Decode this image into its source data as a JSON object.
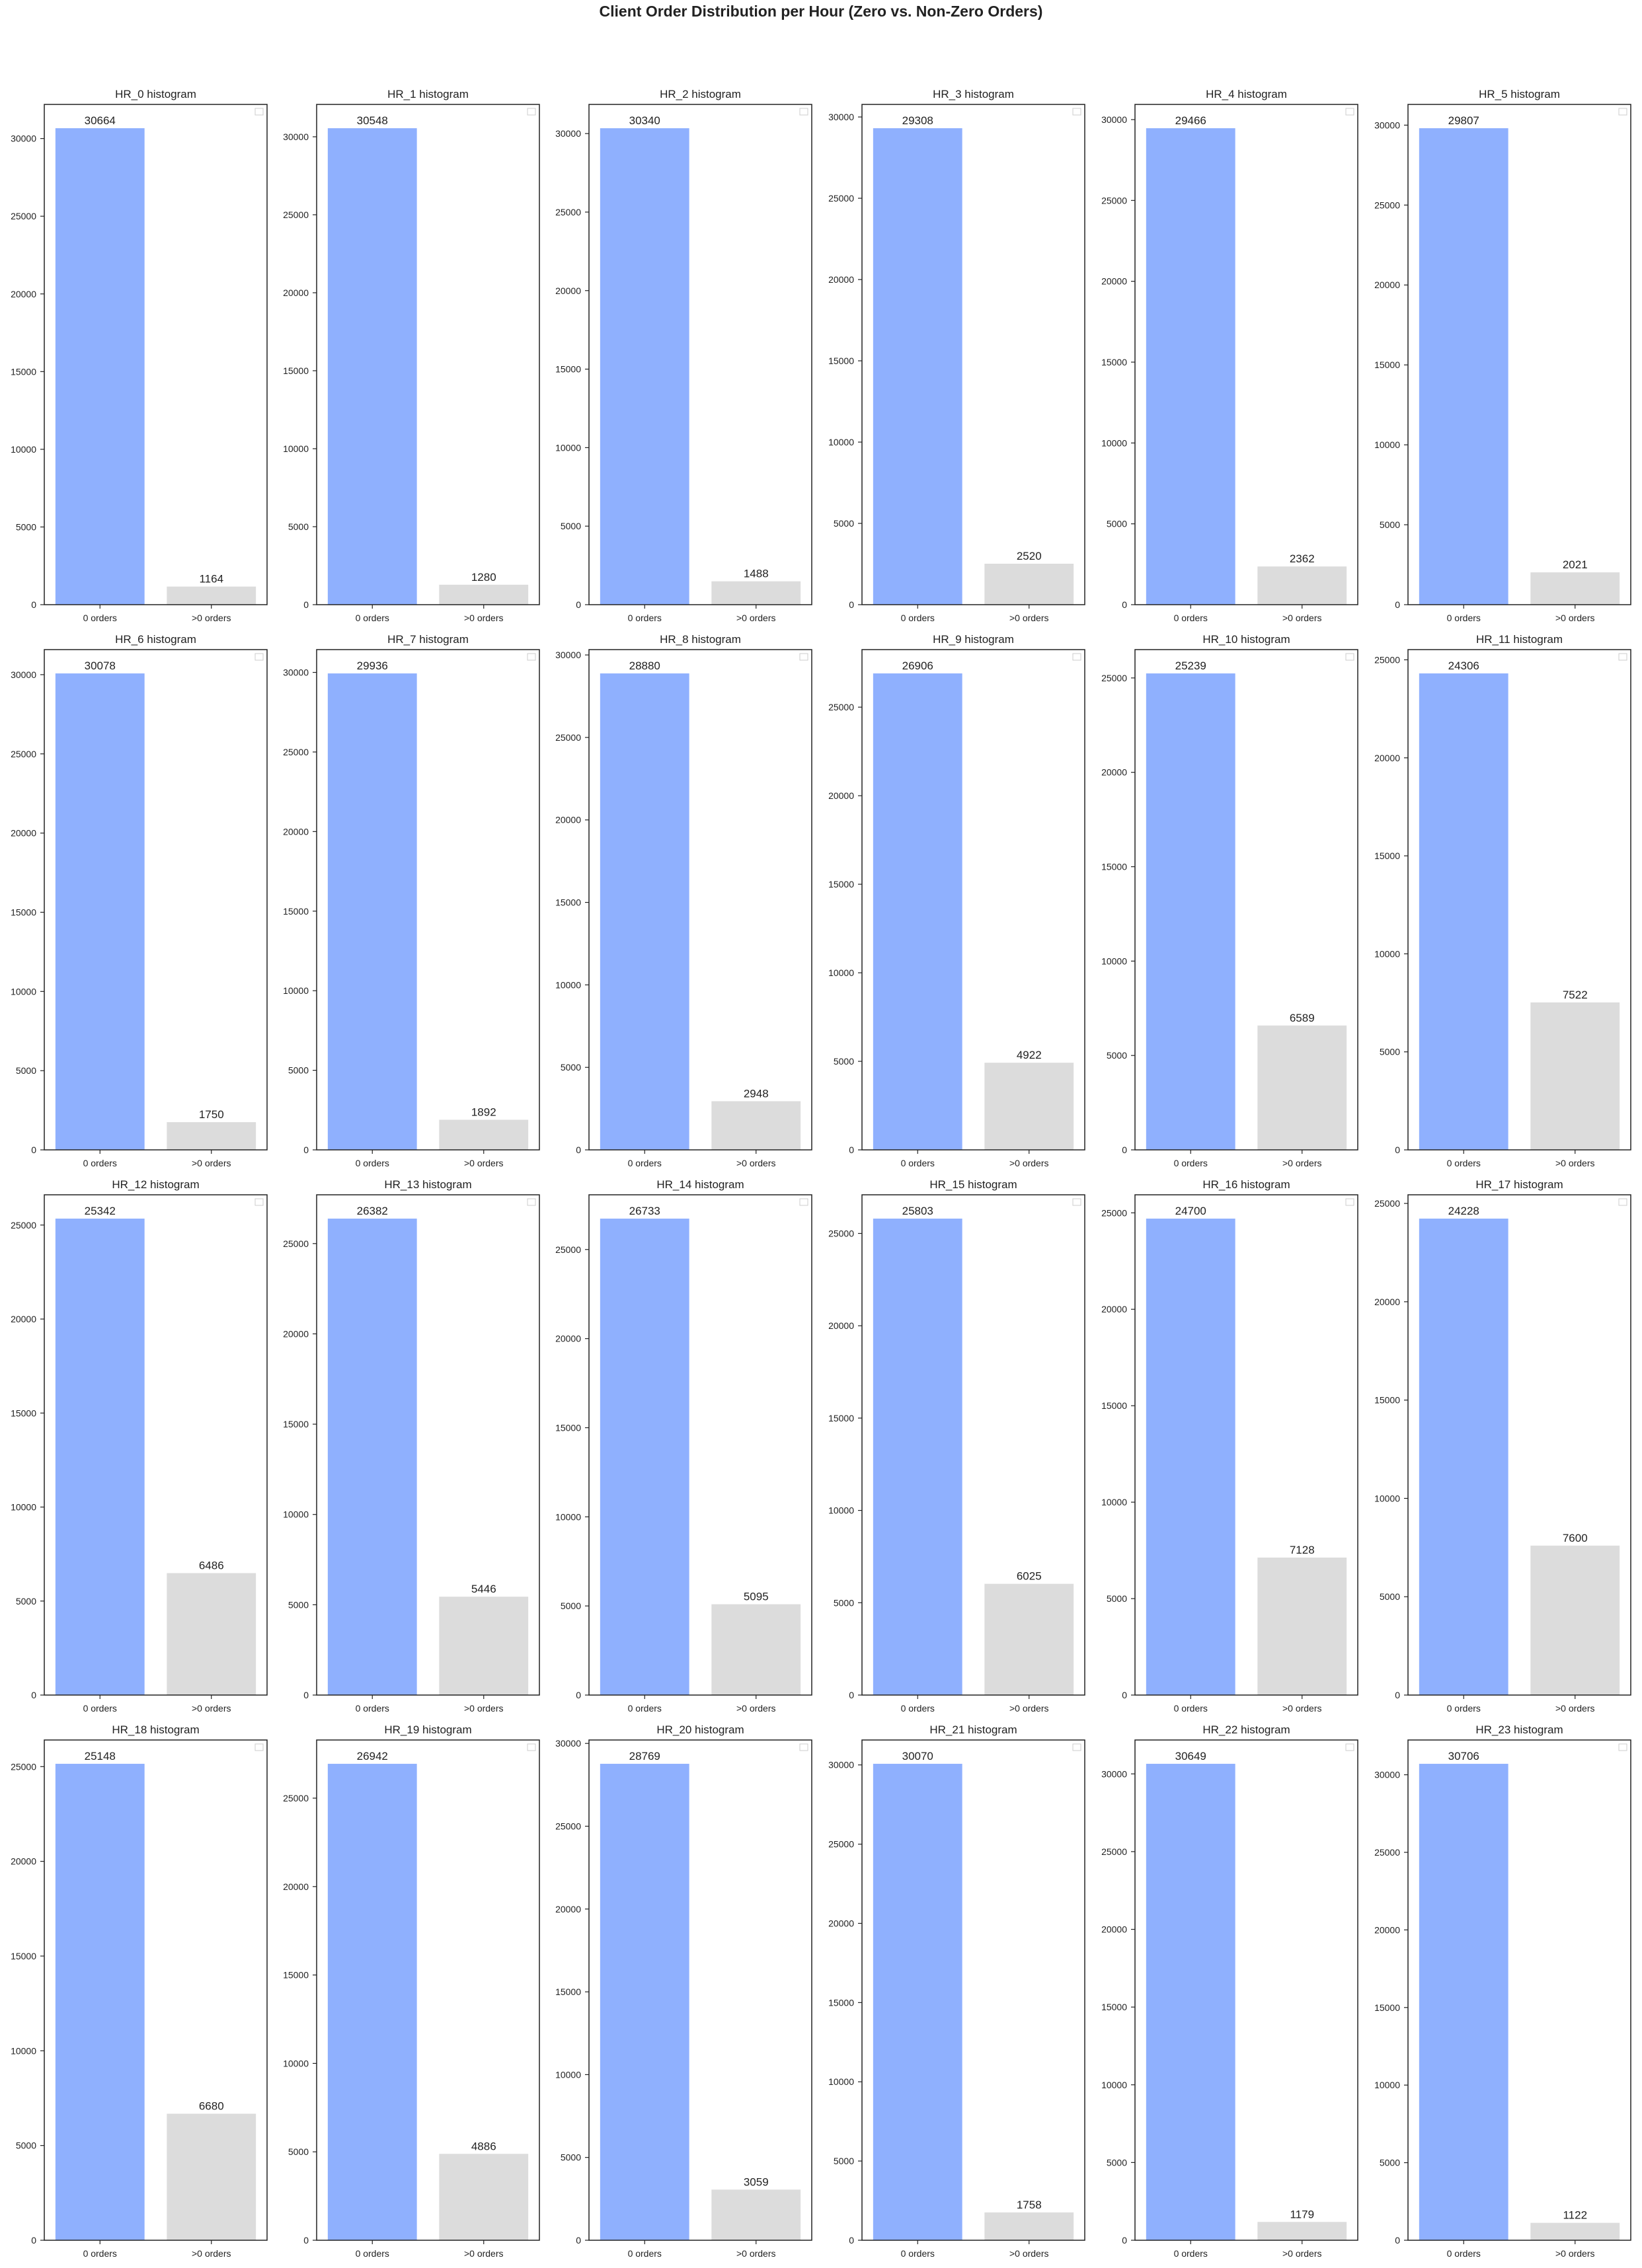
{
  "figure": {
    "suptitle": "Client Order Distribution per Hour (Zero vs. Non-Zero Orders)",
    "colors": {
      "zero_bar": "#8fb0fe",
      "nonzero_bar": "#dcdcdc",
      "axes_frame": "#222222",
      "text": "#222222"
    }
  },
  "chart_data": [
    {
      "type": "bar",
      "title": "HR_0 histogram",
      "categories": [
        "0 orders",
        ">0 orders"
      ],
      "values": [
        30664,
        1164
      ],
      "yticks": [
        0,
        5000,
        10000,
        15000,
        20000,
        25000,
        30000
      ],
      "ylim": [
        0,
        32196
      ]
    },
    {
      "type": "bar",
      "title": "HR_1 histogram",
      "categories": [
        "0 orders",
        ">0 orders"
      ],
      "values": [
        30548,
        1280
      ],
      "yticks": [
        0,
        5000,
        10000,
        15000,
        20000,
        25000,
        30000
      ],
      "ylim": [
        0,
        32075
      ]
    },
    {
      "type": "bar",
      "title": "HR_2 histogram",
      "categories": [
        "0 orders",
        ">0 orders"
      ],
      "values": [
        30340,
        1488
      ],
      "yticks": [
        0,
        5000,
        10000,
        15000,
        20000,
        25000,
        30000
      ],
      "ylim": [
        0,
        31857
      ]
    },
    {
      "type": "bar",
      "title": "HR_3 histogram",
      "categories": [
        "0 orders",
        ">0 orders"
      ],
      "values": [
        29308,
        2520
      ],
      "yticks": [
        0,
        5000,
        10000,
        15000,
        20000,
        25000,
        30000
      ],
      "ylim": [
        0,
        30773
      ]
    },
    {
      "type": "bar",
      "title": "HR_4 histogram",
      "categories": [
        "0 orders",
        ">0 orders"
      ],
      "values": [
        29466,
        2362
      ],
      "yticks": [
        0,
        5000,
        10000,
        15000,
        20000,
        25000,
        30000
      ],
      "ylim": [
        0,
        30939
      ]
    },
    {
      "type": "bar",
      "title": "HR_5 histogram",
      "categories": [
        "0 orders",
        ">0 orders"
      ],
      "values": [
        29807,
        2021
      ],
      "yticks": [
        0,
        5000,
        10000,
        15000,
        20000,
        25000,
        30000
      ],
      "ylim": [
        0,
        31297
      ]
    },
    {
      "type": "bar",
      "title": "HR_6 histogram",
      "categories": [
        "0 orders",
        ">0 orders"
      ],
      "values": [
        30078,
        1750
      ],
      "yticks": [
        0,
        5000,
        10000,
        15000,
        20000,
        25000,
        30000
      ],
      "ylim": [
        0,
        31582
      ]
    },
    {
      "type": "bar",
      "title": "HR_7 histogram",
      "categories": [
        "0 orders",
        ">0 orders"
      ],
      "values": [
        29936,
        1892
      ],
      "yticks": [
        0,
        5000,
        10000,
        15000,
        20000,
        25000,
        30000
      ],
      "ylim": [
        0,
        31433
      ]
    },
    {
      "type": "bar",
      "title": "HR_8 histogram",
      "categories": [
        "0 orders",
        ">0 orders"
      ],
      "values": [
        28880,
        2948
      ],
      "yticks": [
        0,
        5000,
        10000,
        15000,
        20000,
        25000,
        30000
      ],
      "ylim": [
        0,
        30324
      ]
    },
    {
      "type": "bar",
      "title": "HR_9 histogram",
      "categories": [
        "0 orders",
        ">0 orders"
      ],
      "values": [
        26906,
        4922
      ],
      "yticks": [
        0,
        5000,
        10000,
        15000,
        20000,
        25000
      ],
      "ylim": [
        0,
        28251
      ]
    },
    {
      "type": "bar",
      "title": "HR_10 histogram",
      "categories": [
        "0 orders",
        ">0 orders"
      ],
      "values": [
        25239,
        6589
      ],
      "yticks": [
        0,
        5000,
        10000,
        15000,
        20000,
        25000
      ],
      "ylim": [
        0,
        26501
      ]
    },
    {
      "type": "bar",
      "title": "HR_11 histogram",
      "categories": [
        "0 orders",
        ">0 orders"
      ],
      "values": [
        24306,
        7522
      ],
      "yticks": [
        0,
        5000,
        10000,
        15000,
        20000,
        25000
      ],
      "ylim": [
        0,
        25521
      ]
    },
    {
      "type": "bar",
      "title": "HR_12 histogram",
      "categories": [
        "0 orders",
        ">0 orders"
      ],
      "values": [
        25342,
        6486
      ],
      "yticks": [
        0,
        5000,
        10000,
        15000,
        20000,
        25000
      ],
      "ylim": [
        0,
        26609
      ]
    },
    {
      "type": "bar",
      "title": "HR_13 histogram",
      "categories": [
        "0 orders",
        ">0 orders"
      ],
      "values": [
        26382,
        5446
      ],
      "yticks": [
        0,
        5000,
        10000,
        15000,
        20000,
        25000
      ],
      "ylim": [
        0,
        27701
      ]
    },
    {
      "type": "bar",
      "title": "HR_14 histogram",
      "categories": [
        "0 orders",
        ">0 orders"
      ],
      "values": [
        26733,
        5095
      ],
      "yticks": [
        0,
        5000,
        10000,
        15000,
        20000,
        25000
      ],
      "ylim": [
        0,
        28070
      ]
    },
    {
      "type": "bar",
      "title": "HR_15 histogram",
      "categories": [
        "0 orders",
        ">0 orders"
      ],
      "values": [
        25803,
        6025
      ],
      "yticks": [
        0,
        5000,
        10000,
        15000,
        20000,
        25000
      ],
      "ylim": [
        0,
        27093
      ]
    },
    {
      "type": "bar",
      "title": "HR_16 histogram",
      "categories": [
        "0 orders",
        ">0 orders"
      ],
      "values": [
        24700,
        7128
      ],
      "yticks": [
        0,
        5000,
        10000,
        15000,
        20000,
        25000
      ],
      "ylim": [
        0,
        25935
      ]
    },
    {
      "type": "bar",
      "title": "HR_17 histogram",
      "categories": [
        "0 orders",
        ">0 orders"
      ],
      "values": [
        24228,
        7600
      ],
      "yticks": [
        0,
        5000,
        10000,
        15000,
        20000,
        25000
      ],
      "ylim": [
        0,
        25439
      ]
    },
    {
      "type": "bar",
      "title": "HR_18 histogram",
      "categories": [
        "0 orders",
        ">0 orders"
      ],
      "values": [
        25148,
        6680
      ],
      "yticks": [
        0,
        5000,
        10000,
        15000,
        20000,
        25000
      ],
      "ylim": [
        0,
        26405
      ]
    },
    {
      "type": "bar",
      "title": "HR_19 histogram",
      "categories": [
        "0 orders",
        ">0 orders"
      ],
      "values": [
        26942,
        4886
      ],
      "yticks": [
        0,
        5000,
        10000,
        15000,
        20000,
        25000
      ],
      "ylim": [
        0,
        28289
      ]
    },
    {
      "type": "bar",
      "title": "HR_20 histogram",
      "categories": [
        "0 orders",
        ">0 orders"
      ],
      "values": [
        28769,
        3059
      ],
      "yticks": [
        0,
        5000,
        10000,
        15000,
        20000,
        25000,
        30000
      ],
      "ylim": [
        0,
        30207
      ]
    },
    {
      "type": "bar",
      "title": "HR_21 histogram",
      "categories": [
        "0 orders",
        ">0 orders"
      ],
      "values": [
        30070,
        1758
      ],
      "yticks": [
        0,
        5000,
        10000,
        15000,
        20000,
        25000,
        30000
      ],
      "ylim": [
        0,
        31573
      ]
    },
    {
      "type": "bar",
      "title": "HR_22 histogram",
      "categories": [
        "0 orders",
        ">0 orders"
      ],
      "values": [
        30649,
        1179
      ],
      "yticks": [
        0,
        5000,
        10000,
        15000,
        20000,
        25000,
        30000
      ],
      "ylim": [
        0,
        32181
      ]
    },
    {
      "type": "bar",
      "title": "HR_23 histogram",
      "categories": [
        "0 orders",
        ">0 orders"
      ],
      "values": [
        30706,
        1122
      ],
      "yticks": [
        0,
        5000,
        10000,
        15000,
        20000,
        25000,
        30000
      ],
      "ylim": [
        0,
        32241
      ]
    }
  ]
}
